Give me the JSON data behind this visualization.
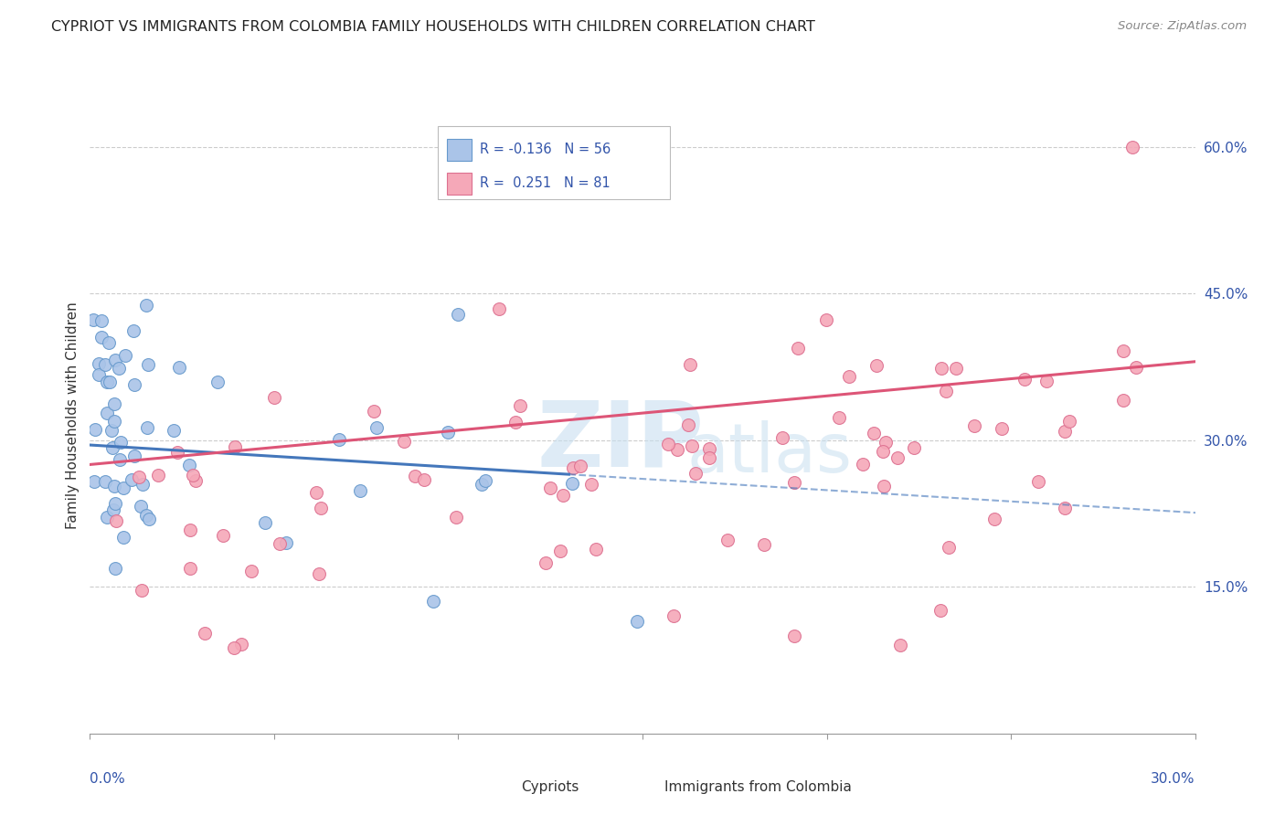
{
  "title": "CYPRIOT VS IMMIGRANTS FROM COLOMBIA FAMILY HOUSEHOLDS WITH CHILDREN CORRELATION CHART",
  "source": "Source: ZipAtlas.com",
  "ylabel": "Family Households with Children",
  "right_yticks": [
    "60.0%",
    "45.0%",
    "30.0%",
    "15.0%"
  ],
  "right_ytick_vals": [
    0.6,
    0.45,
    0.3,
    0.15
  ],
  "xmin": 0.0,
  "xmax": 0.3,
  "ymin": 0.0,
  "ymax": 0.65,
  "cypriot_color": "#aac4e8",
  "colombia_color": "#f5a8b8",
  "cypriot_edge": "#6699cc",
  "colombia_edge": "#dd7090",
  "trend_cypriot_color": "#4477bb",
  "trend_colombia_color": "#dd5577",
  "watermark_color": "#c8dff0",
  "grid_color": "#cccccc",
  "title_color": "#222222",
  "source_color": "#888888",
  "axis_label_color": "#3355aa",
  "legend_border_color": "#bbbbbb"
}
